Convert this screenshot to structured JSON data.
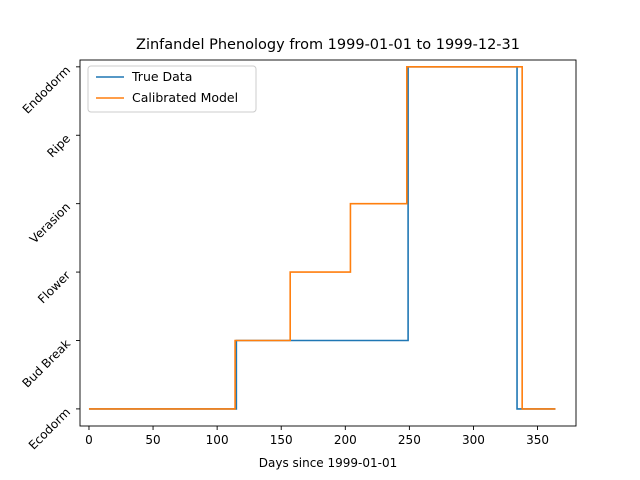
{
  "chart_data": {
    "type": "line",
    "title": "Zinfandel Phenology from 1999-01-01 to 1999-12-31",
    "xlabel": "Days since 1999-01-01",
    "ylabel": "",
    "xlim": [
      -7,
      380
    ],
    "ylim": [
      -0.25,
      5.1
    ],
    "xticks": [
      0,
      50,
      100,
      150,
      200,
      250,
      300,
      350
    ],
    "ytick_labels": [
      "Ecodorm",
      "Bud Break",
      "Flower",
      "Verasion",
      "Ripe",
      "Endodorm"
    ],
    "grid": false,
    "legend_position": "top-left",
    "series": [
      {
        "name": "True Data",
        "color": "#1f77b4",
        "points": [
          [
            0,
            0
          ],
          [
            115,
            0
          ],
          [
            115,
            1
          ],
          [
            249,
            1
          ],
          [
            249,
            5
          ],
          [
            334,
            5
          ],
          [
            334,
            0
          ],
          [
            364,
            0
          ]
        ]
      },
      {
        "name": "Calibrated Model",
        "color": "#ff7f0e",
        "points": [
          [
            0,
            0
          ],
          [
            114,
            0
          ],
          [
            114,
            1
          ],
          [
            157,
            1
          ],
          [
            157,
            2
          ],
          [
            204,
            2
          ],
          [
            204,
            3
          ],
          [
            248,
            3
          ],
          [
            248,
            5
          ],
          [
            338,
            5
          ],
          [
            338,
            0
          ],
          [
            364,
            0
          ]
        ]
      }
    ]
  }
}
